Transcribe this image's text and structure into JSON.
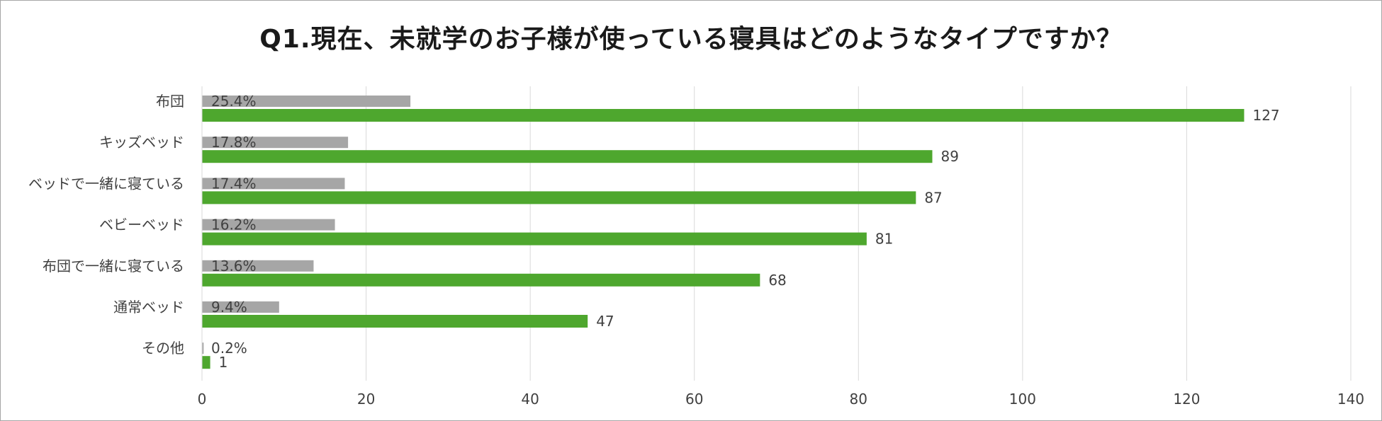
{
  "chart_data": {
    "type": "bar",
    "orientation": "horizontal",
    "title": "Q1.現在、未就学のお子様が使っている寝具はどのようなタイプですか？",
    "categories": [
      "布団",
      "キッズベッド",
      "ベッドで一緒に寝ている",
      "ベビーベッド",
      "布団で一緒に寝ている",
      "通常ベッド",
      "その他"
    ],
    "series": [
      {
        "name": "",
        "values": [
          127,
          89,
          87,
          81,
          68,
          47,
          1
        ],
        "color": "#4ea72e"
      },
      {
        "name": "",
        "values": [
          25.4,
          17.8,
          17.4,
          16.2,
          13.6,
          9.4,
          0.2
        ],
        "color": "#a6a6a6"
      }
    ],
    "percent_labels": [
      "25.4%",
      "17.8%",
      "17.4%",
      "16.2%",
      "13.6%",
      "9.4%",
      "0.2%"
    ],
    "value_labels": [
      "127",
      "89",
      "87",
      "81",
      "68",
      "47",
      "1"
    ],
    "xlim": [
      0,
      140
    ],
    "xticks": [
      0,
      20,
      40,
      60,
      80,
      100,
      120,
      140
    ],
    "xtick_labels": [
      "0",
      "20",
      "40",
      "60",
      "80",
      "100",
      "120",
      "140"
    ],
    "grid": "vertical",
    "legend": "none",
    "xlabel": "",
    "ylabel": ""
  }
}
